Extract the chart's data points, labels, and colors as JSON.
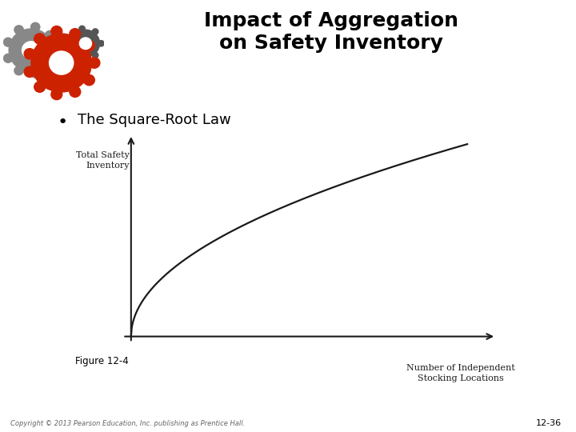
{
  "title_line1": "Impact of Aggregation",
  "title_line2": "on Safety Inventory",
  "bullet_text": "The Square-Root Law",
  "ylabel": "Total Safety\nInventory",
  "xlabel": "Number of Independent\nStocking Locations",
  "figure_label": "Figure 12-4",
  "copyright_text": "Copyright © 2013 Pearson Education, Inc. publishing as Prentice Hall.",
  "slide_number": "12-36",
  "bg_color": "#ffffff",
  "curve_color": "#1a1a1a",
  "axis_color": "#1a1a1a",
  "title_color": "#000000",
  "bullet_color": "#000000",
  "figure_label_color": "#000000",
  "copyright_color": "#666666",
  "gear_red": "#cc2200",
  "gear_gray": "#888888",
  "gear_dark": "#555555"
}
